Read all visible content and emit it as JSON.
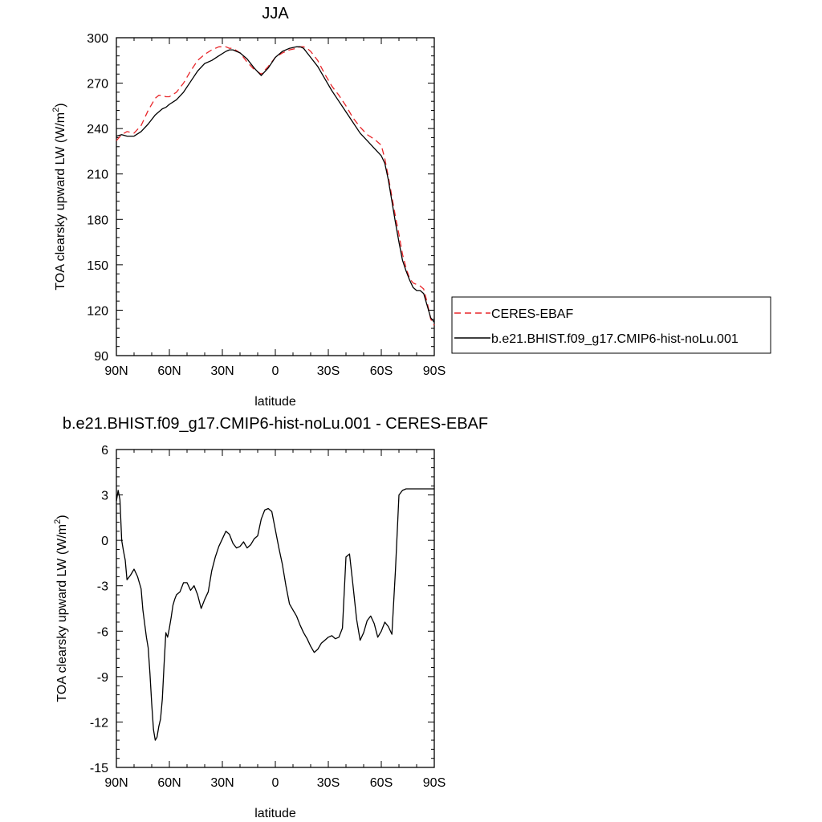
{
  "chart_data": [
    {
      "type": "line",
      "title": "JJA",
      "xlabel": "latitude",
      "ylabel_main": "TOA clearsky upward LW (W/m",
      "ylabel_sup": "2",
      "ylabel_close": ")",
      "xlim": [
        90,
        -90
      ],
      "ylim": [
        90,
        300
      ],
      "x_ticks": [
        {
          "value": 90,
          "label": "90N"
        },
        {
          "value": 60,
          "label": "60N"
        },
        {
          "value": 30,
          "label": "30N"
        },
        {
          "value": 0,
          "label": "0"
        },
        {
          "value": -30,
          "label": "30S"
        },
        {
          "value": -60,
          "label": "60S"
        },
        {
          "value": -90,
          "label": "90S"
        }
      ],
      "y_ticks": [
        90,
        120,
        150,
        180,
        210,
        240,
        270,
        300
      ],
      "legend_position": "right",
      "series": [
        {
          "name": "CERES-EBAF",
          "color": "#e8262a",
          "dash": "dashed",
          "x": [
            90,
            87,
            84,
            80,
            76,
            72,
            68,
            66,
            64,
            62,
            60,
            56,
            52,
            48,
            44,
            40,
            36,
            32,
            28,
            26,
            24,
            20,
            16,
            12,
            8,
            4,
            0,
            -4,
            -8,
            -12,
            -14,
            -16,
            -18,
            -20,
            -24,
            -28,
            -32,
            -36,
            -40,
            -44,
            -48,
            -52,
            -56,
            -60,
            -62,
            -64,
            -66,
            -68,
            -70,
            -72,
            -74,
            -76,
            -78,
            -80,
            -82,
            -84,
            -86,
            -88,
            -90
          ],
          "y": [
            232,
            236,
            238,
            237,
            242,
            252,
            260,
            262,
            262,
            261,
            261,
            264,
            270,
            278,
            285,
            289,
            292,
            294,
            294,
            293,
            293,
            290,
            284,
            279,
            276,
            281,
            287,
            290,
            292,
            293,
            294,
            294,
            293,
            291,
            285,
            276,
            268,
            262,
            255,
            247,
            241,
            236,
            233,
            229,
            220,
            208,
            195,
            182,
            170,
            157,
            148,
            141,
            138,
            137,
            136,
            134,
            125,
            114,
            110
          ]
        },
        {
          "name": "b.e21.BHIST.f09_g17.CMIP6-hist-noLu.001",
          "color": "#000000",
          "dash": "solid",
          "x": [
            90,
            87,
            84,
            80,
            76,
            72,
            68,
            66,
            64,
            62,
            60,
            56,
            52,
            48,
            44,
            40,
            36,
            32,
            28,
            26,
            24,
            20,
            16,
            12,
            8,
            4,
            0,
            -4,
            -8,
            -12,
            -14,
            -16,
            -18,
            -20,
            -24,
            -28,
            -32,
            -36,
            -40,
            -44,
            -48,
            -52,
            -56,
            -60,
            -62,
            -64,
            -66,
            -68,
            -70,
            -72,
            -74,
            -76,
            -78,
            -80,
            -82,
            -84,
            -86,
            -88,
            -90
          ],
          "y": [
            235,
            236,
            235,
            235,
            238,
            243,
            249,
            251,
            253,
            254,
            256,
            259,
            264,
            271,
            278,
            283,
            285,
            288,
            291,
            292,
            292,
            290,
            286,
            280,
            275,
            280,
            287,
            291,
            293,
            294,
            294,
            293,
            290,
            287,
            281,
            273,
            265,
            258,
            251,
            244,
            237,
            232,
            227,
            222,
            217,
            206,
            192,
            178,
            165,
            153,
            146,
            140,
            135,
            133,
            133,
            131,
            123,
            115,
            112
          ]
        }
      ]
    },
    {
      "type": "line",
      "title": "b.e21.BHIST.f09_g17.CMIP6-hist-noLu.001 - CERES-EBAF",
      "xlabel": "latitude",
      "ylabel_main": "TOA clearsky upward LW (W/m",
      "ylabel_sup": "2",
      "ylabel_close": ")",
      "xlim": [
        90,
        -90
      ],
      "ylim": [
        -15,
        6
      ],
      "x_ticks": [
        {
          "value": 90,
          "label": "90N"
        },
        {
          "value": 60,
          "label": "60N"
        },
        {
          "value": 30,
          "label": "30N"
        },
        {
          "value": 0,
          "label": "0"
        },
        {
          "value": -30,
          "label": "30S"
        },
        {
          "value": -60,
          "label": "60S"
        },
        {
          "value": -90,
          "label": "90S"
        }
      ],
      "y_ticks": [
        -15,
        -12,
        -9,
        -6,
        -3,
        0,
        3,
        6
      ],
      "series": [
        {
          "name": "",
          "color": "#000000",
          "dash": "solid",
          "x": [
            90,
            89,
            88,
            87,
            86,
            85,
            84,
            82,
            80,
            78,
            76,
            75,
            74,
            73,
            72,
            71,
            70,
            69,
            68,
            67,
            66,
            65,
            64,
            63,
            62,
            61,
            60,
            59,
            58,
            57,
            56,
            54,
            52,
            50,
            48,
            46,
            44,
            42,
            40,
            38,
            36,
            34,
            32,
            30,
            28,
            26,
            24,
            22,
            20,
            18,
            16,
            14,
            12,
            10,
            8,
            6,
            4,
            2,
            0,
            -2,
            -4,
            -6,
            -8,
            -10,
            -12,
            -14,
            -16,
            -18,
            -20,
            -22,
            -24,
            -26,
            -28,
            -30,
            -32,
            -34,
            -36,
            -38,
            -40,
            -42,
            -44,
            -46,
            -48,
            -50,
            -52,
            -54,
            -56,
            -58,
            -60,
            -62,
            -64,
            -66,
            -68,
            -70,
            -72,
            -74,
            -76,
            -78,
            -80,
            -82,
            -84,
            -86,
            -87,
            -88,
            -89,
            -90
          ],
          "y": [
            2.6,
            3.3,
            2.7,
            0,
            -0.7,
            -1.3,
            -2.6,
            -2.3,
            -1.9,
            -2.4,
            -3.2,
            -4.6,
            -5.5,
            -6.4,
            -7.1,
            -8.8,
            -10.8,
            -12.5,
            -13.2,
            -13,
            -12.3,
            -11.8,
            -10.5,
            -8.2,
            -6.1,
            -6.4,
            -5.8,
            -5.1,
            -4.3,
            -3.9,
            -3.6,
            -3.4,
            -2.8,
            -2.8,
            -3.3,
            -3.0,
            -3.6,
            -4.5,
            -3.9,
            -3.4,
            -2.0,
            -1.1,
            -0.4,
            0.1,
            0.6,
            0.4,
            -0.2,
            -0.5,
            -0.4,
            -0.1,
            -0.5,
            -0.3,
            0.1,
            0.3,
            1.4,
            2.0,
            2.1,
            1.9,
            0.7,
            -0.5,
            -1.6,
            -3.0,
            -4.2,
            -4.6,
            -5.0,
            -5.6,
            -6.1,
            -6.5,
            -7.0,
            -7.4,
            -7.2,
            -6.8,
            -6.6,
            -6.4,
            -6.3,
            -6.5,
            -6.4,
            -5.8,
            -1.1,
            -0.9,
            -3.0,
            -5.2,
            -6.6,
            -6.1,
            -5.3,
            -5.0,
            -5.5,
            -6.4,
            -6.0,
            -5.4,
            -5.7,
            -6.2,
            -2.0,
            3.0,
            3.3,
            3.4,
            3.4,
            3.4,
            3.4,
            3.4,
            3.4,
            3.4,
            3.4,
            3.4,
            3.4,
            3.4
          ],
          "note_x_range": "full"
        }
      ]
    }
  ]
}
